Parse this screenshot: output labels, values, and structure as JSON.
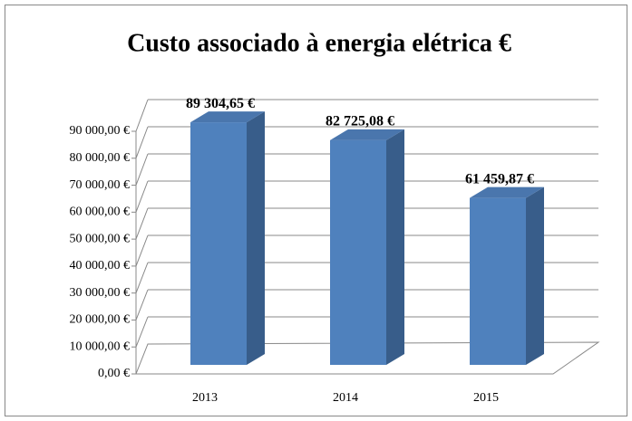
{
  "chart_data": {
    "type": "bar3d",
    "title": "Custo associado à energia elétrica €",
    "categories": [
      "2013",
      "2014",
      "2015"
    ],
    "values": [
      89304.65,
      82725.08,
      61459.87
    ],
    "value_labels": [
      "89 304,65 €",
      "82 725,08 €",
      "61 459,87 €"
    ],
    "color": "#4f81bd",
    "ylim": [
      0,
      90000
    ],
    "yticks": [
      {
        "value": 0,
        "label": "0,00 €"
      },
      {
        "value": 10000,
        "label": "10 000,00 €"
      },
      {
        "value": 20000,
        "label": "20 000,00 €"
      },
      {
        "value": 30000,
        "label": "30 000,00 €"
      },
      {
        "value": 40000,
        "label": "40 000,00 €"
      },
      {
        "value": 50000,
        "label": "50 000,00 €"
      },
      {
        "value": 60000,
        "label": "60 000,00 €"
      },
      {
        "value": 70000,
        "label": "70 000,00 €"
      },
      {
        "value": 80000,
        "label": "80 000,00 €"
      },
      {
        "value": 90000,
        "label": "90 000,00 €"
      }
    ],
    "grid": true
  }
}
